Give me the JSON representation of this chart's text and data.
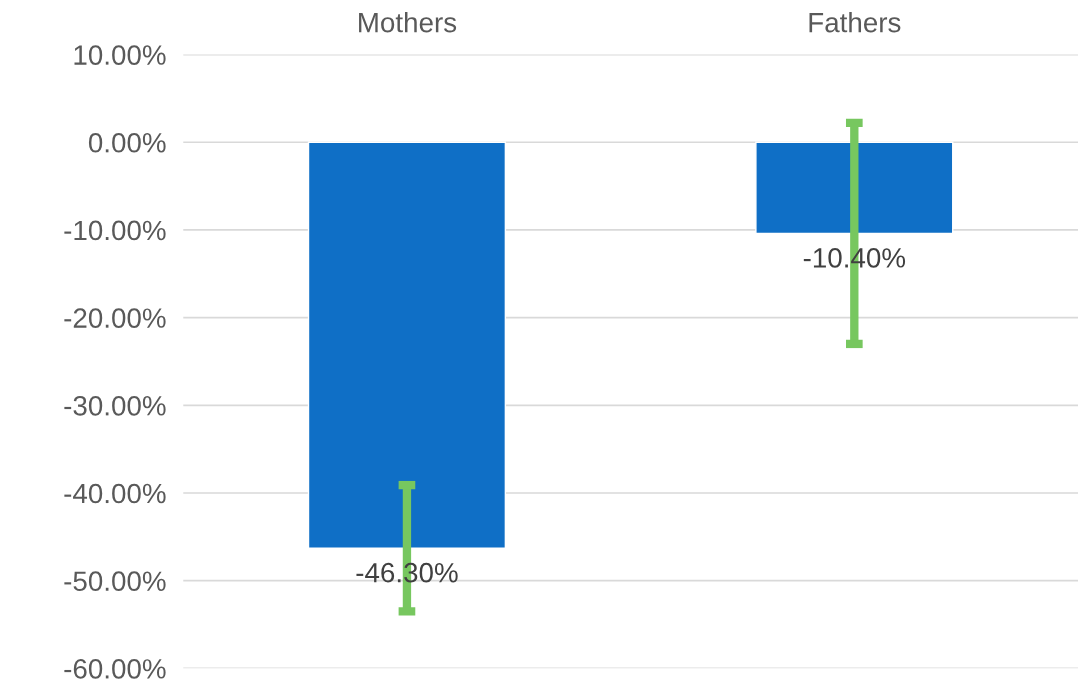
{
  "chart_data": {
    "type": "bar",
    "categories": [
      "Mothers",
      "Fathers"
    ],
    "values": [
      -46.3,
      -10.4
    ],
    "color": "#0f6fc6",
    "errors": [
      7.2,
      12.6
    ],
    "value_labels": [
      "-46.30%",
      "-10.40%"
    ],
    "ylim": [
      -60,
      10
    ],
    "yticks": [
      {
        "value": 10,
        "label": "10.00%"
      },
      {
        "value": 0,
        "label": "0.00%"
      },
      {
        "value": -10,
        "label": "-10.00%"
      },
      {
        "value": -20,
        "label": "-20.00%"
      },
      {
        "value": -30,
        "label": "-30.00%"
      },
      {
        "value": -40,
        "label": "-40.00%"
      },
      {
        "value": -50,
        "label": "-50.00%"
      },
      {
        "value": -60,
        "label": "-60.00%"
      }
    ],
    "grid": "y",
    "legend": false
  }
}
